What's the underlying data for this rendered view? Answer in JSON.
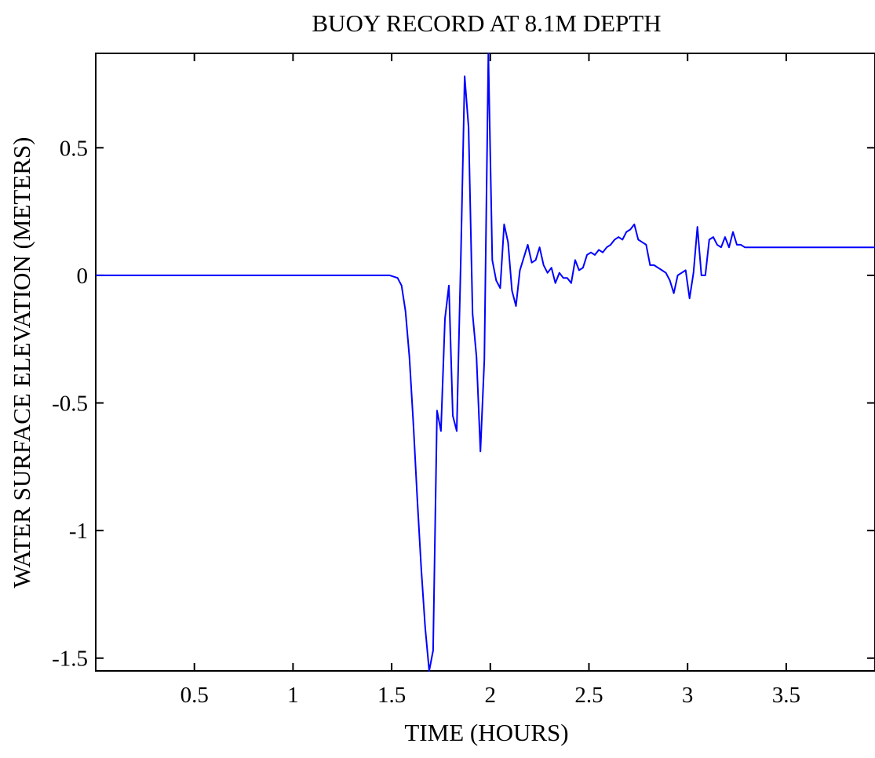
{
  "chart_data": {
    "type": "line",
    "title": "BUOY RECORD AT 8.1M DEPTH",
    "xlabel": "TIME (HOURS)",
    "ylabel": "WATER SURFACE ELEVATION (METERS)",
    "xlim": [
      0,
      3.95
    ],
    "ylim": [
      -1.55,
      0.87
    ],
    "x_ticks": [
      0.5,
      1,
      1.5,
      2,
      2.5,
      3,
      3.5
    ],
    "x_tick_labels": [
      "0.5",
      "1",
      "1.5",
      "2",
      "2.5",
      "3",
      "3.5"
    ],
    "y_ticks": [
      0.5,
      0,
      -0.5,
      -1,
      -1.5
    ],
    "y_tick_labels": [
      "0.5",
      "0",
      "-0.5",
      "-1",
      "-1.5"
    ],
    "grid": false,
    "series_color": "#0000ff",
    "series": [
      {
        "x": [
          0,
          1.49,
          1.53,
          1.55,
          1.57,
          1.59,
          1.61,
          1.63,
          1.65,
          1.67,
          1.69,
          1.71,
          1.73,
          1.75,
          1.77,
          1.79,
          1.81,
          1.83,
          1.85,
          1.87,
          1.89,
          1.91,
          1.93,
          1.95,
          1.97,
          1.99,
          2.01,
          2.03,
          2.05,
          2.07,
          2.09,
          2.11,
          2.13,
          2.15,
          2.17,
          2.19,
          2.21,
          2.23,
          2.25,
          2.27,
          2.29,
          2.31,
          2.33,
          2.35,
          2.37,
          2.39,
          2.41,
          2.43,
          2.45,
          2.47,
          2.49,
          2.51,
          2.53,
          2.55,
          2.57,
          2.59,
          2.61,
          2.63,
          2.65,
          2.67,
          2.69,
          2.71,
          2.73,
          2.75,
          2.77,
          2.79,
          2.81,
          2.83,
          2.85,
          2.87,
          2.89,
          2.91,
          2.93,
          2.95,
          2.97,
          2.99,
          3.01,
          3.03,
          3.05,
          3.07,
          3.09,
          3.11,
          3.13,
          3.15,
          3.17,
          3.19,
          3.21,
          3.23,
          3.25,
          3.27,
          3.29,
          3.31,
          3.33,
          3.35,
          3.37,
          3.39,
          3.41,
          3.43,
          3.45,
          3.47,
          3.49,
          3.51,
          3.53,
          3.55,
          3.57,
          3.59,
          3.61,
          3.63,
          3.65,
          3.67,
          3.69,
          3.71,
          3.73,
          3.75,
          3.77,
          3.79,
          3.81,
          3.83,
          3.85,
          3.87,
          3.89,
          3.91,
          3.93,
          3.95
        ],
        "y": [
          0,
          0,
          -0.01,
          -0.04,
          -0.14,
          -0.32,
          -0.58,
          -0.88,
          -1.15,
          -1.38,
          -1.55,
          -1.47,
          -0.53,
          -0.61,
          -0.17,
          -0.04,
          -0.55,
          -0.61,
          0.05,
          0.78,
          0.58,
          -0.15,
          -0.32,
          -0.69,
          -0.33,
          0.87,
          0.06,
          -0.02,
          -0.05,
          0.2,
          0.13,
          -0.06,
          -0.12,
          0.02,
          0.07,
          0.12,
          0.05,
          0.06,
          0.11,
          0.04,
          0.01,
          0.03,
          -0.03,
          0.01,
          -0.01,
          -0.01,
          -0.03,
          0.06,
          0.02,
          0.03,
          0.08,
          0.09,
          0.08,
          0.1,
          0.09,
          0.11,
          0.12,
          0.14,
          0.15,
          0.14,
          0.17,
          0.18,
          0.2,
          0.14,
          0.13,
          0.12,
          0.04,
          0.04,
          0.03,
          0.02,
          0.01,
          -0.02,
          -0.07,
          0,
          0.01,
          0.02,
          -0.09,
          0.01,
          0.19,
          0,
          0,
          0.14,
          0.15,
          0.12,
          0.11,
          0.15,
          0.11,
          0.17,
          0.12,
          0.12,
          0.11,
          0.11,
          0.11,
          0.11,
          0.11,
          0.11,
          0.11,
          0.11,
          0.11,
          0.11,
          0.11,
          0.11,
          0.11,
          0.11,
          0.11,
          0.11,
          0.11,
          0.11,
          0.11,
          0.11,
          0.11,
          0.11,
          0.11,
          0.11,
          0.11,
          0.11,
          0.11,
          0.11,
          0.11,
          0.11,
          0.11,
          0.11,
          0.11,
          0.11
        ]
      }
    ]
  }
}
